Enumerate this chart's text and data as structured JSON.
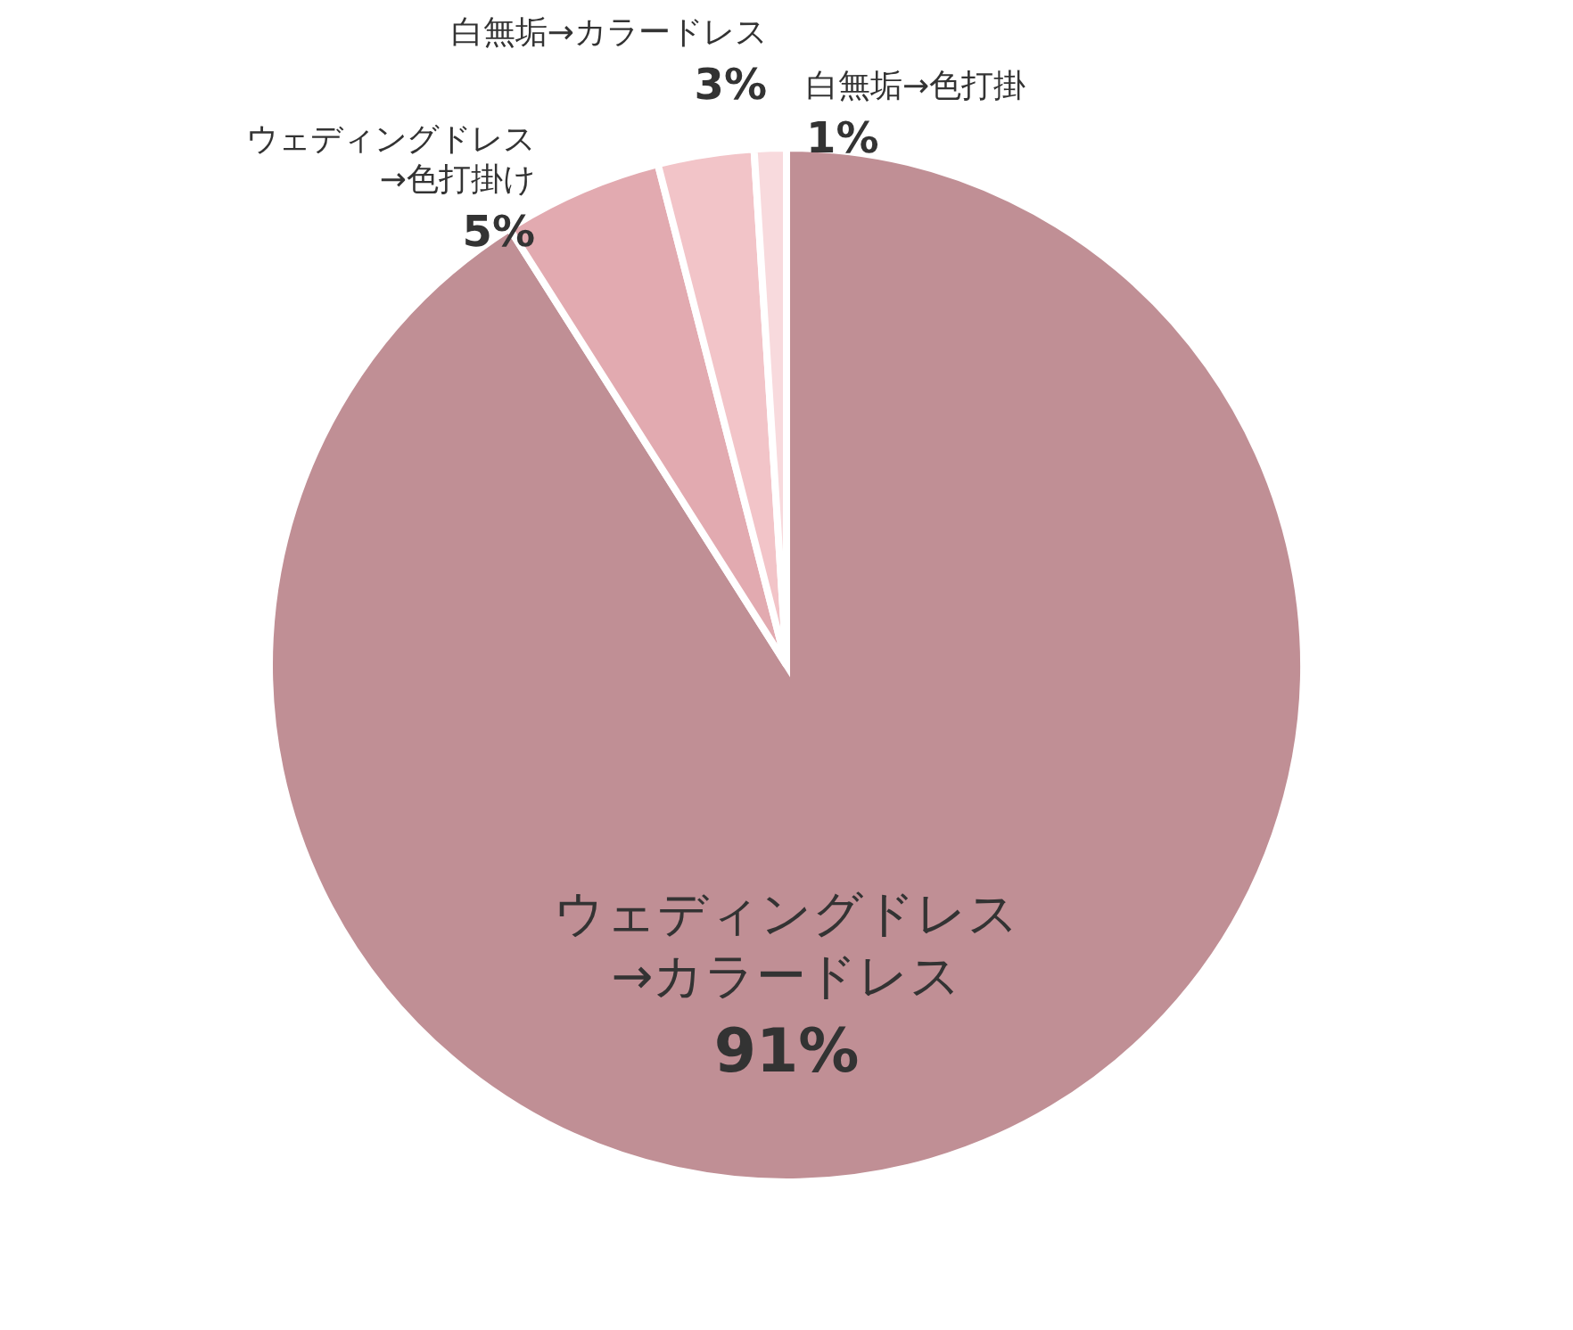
{
  "chart_data": {
    "type": "pie",
    "categories": [
      "ウェディングドレス\n→カラードレス",
      "ウェディングドレス\n→色打掛け",
      "白無垢→カラードレス",
      "白無垢→色打掛"
    ],
    "values": [
      91,
      5,
      3,
      1
    ],
    "colors": [
      "#c08f95",
      "#e2aab0",
      "#f2c4c8",
      "#f8dadd"
    ],
    "value_labels": [
      "91%",
      "5%",
      "3%",
      "1%"
    ]
  }
}
